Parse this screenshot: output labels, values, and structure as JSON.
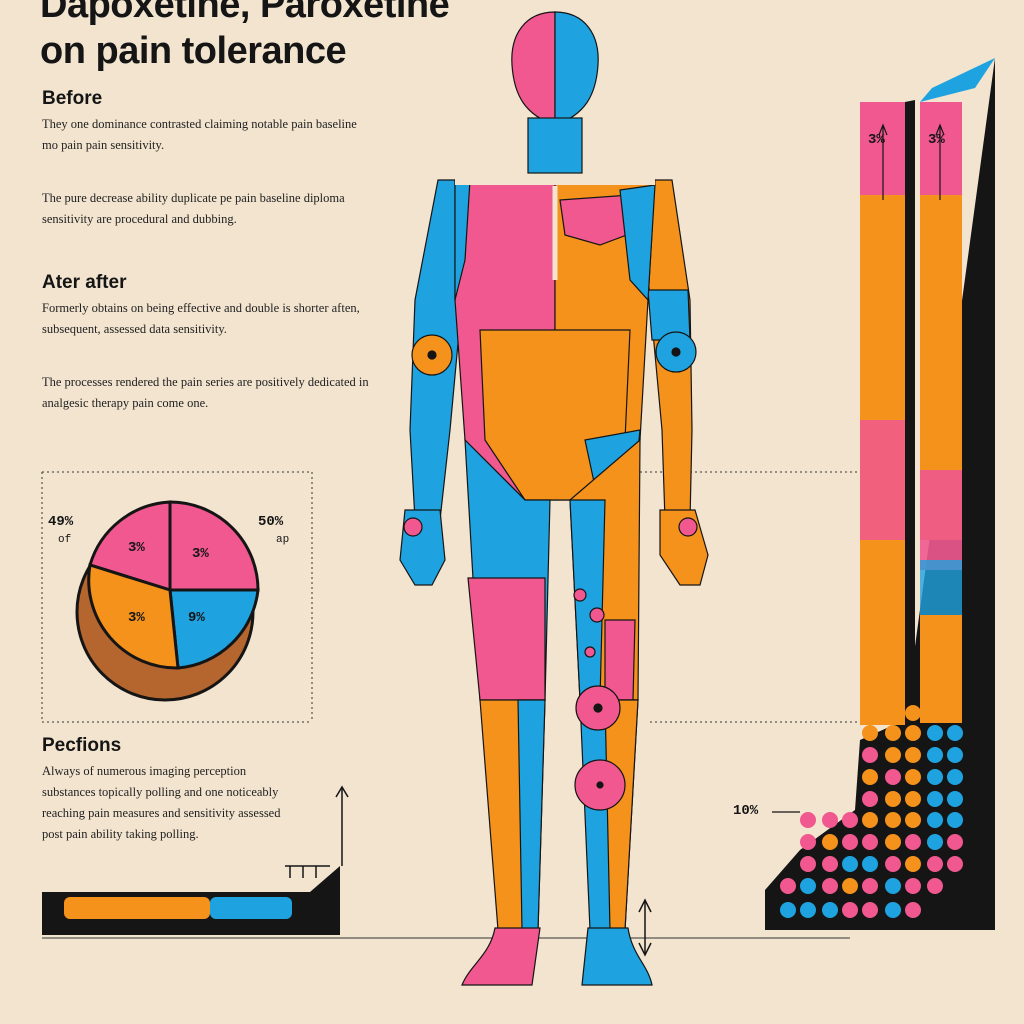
{
  "title": {
    "line1": "Dapoxetine, Paroxetine",
    "line2": "on pain tolerance"
  },
  "sections": {
    "before": {
      "heading": "Before",
      "p1": "They one dominance contrasted claiming notable pain baseline mo pain pain sensitivity.",
      "p2": "The pure decrease ability duplicate pe pain baseline diploma sensitivity are procedural and dubbing."
    },
    "after": {
      "heading": "Ater after",
      "p1": "Formerly obtains on being effective and double is shorter aften, subsequent, assessed data sensitivity.",
      "p2": "The processes rendered the pain series are positively dedicated in analgesic therapy pain come one."
    },
    "perceptions": {
      "heading": "Pecfions",
      "p1": "Always of numerous imaging perception substances topically polling and one noticeably reaching pain measures and sensitivity assessed post pain ability taking polling."
    }
  },
  "pie": {
    "left_label": "49%",
    "left_sub": "of",
    "right_label": "50%",
    "right_sub": "ap",
    "slices": [
      {
        "label": "3%",
        "color": "#f0588f"
      },
      {
        "label": "3%",
        "color": "#f0588f"
      },
      {
        "label": "9%",
        "color": "#1fa3e0"
      },
      {
        "label": "3%",
        "color": "#f5921c"
      }
    ]
  },
  "bars": {
    "bar1_label": "3%",
    "bar2_label": "3%",
    "base_label": "10%"
  },
  "colors": {
    "pink": "#f0588f",
    "blue": "#1fa3e0",
    "orange": "#f5921c",
    "dark": "#151515",
    "background": "#f2e4cf"
  }
}
